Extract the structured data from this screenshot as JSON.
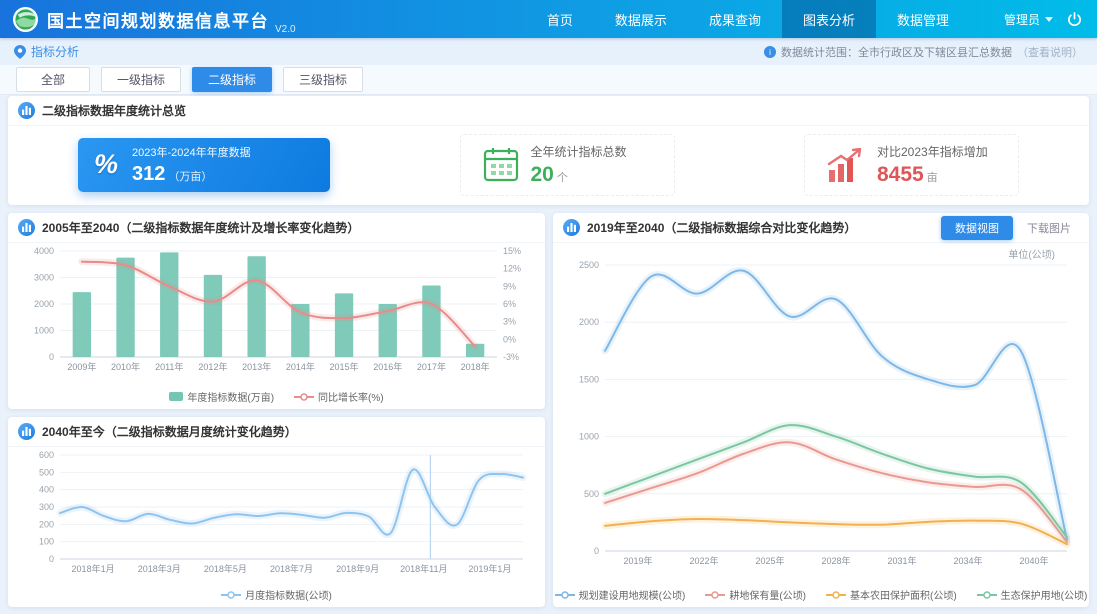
{
  "colors": {
    "header_gradient_start": "#1873dc",
    "header_gradient_end": "#00bce8",
    "accent_blue": "#2f8be8",
    "stat_blue": "#0d7ae0",
    "stat_green": "#3db05a",
    "stat_red": "#e05555",
    "bar_teal": "#74c6b3",
    "line_red": "#e98b8b",
    "line_blue": "#8fc4ee"
  },
  "header": {
    "title": "国土空间规划数据信息平台",
    "subtitle": "V2.0",
    "nav": [
      {
        "label": "首页"
      },
      {
        "label": "数据展示"
      },
      {
        "label": "成果查询"
      },
      {
        "label": "图表分析"
      },
      {
        "label": "数据管理"
      }
    ],
    "active_nav": "图表分析",
    "user_name": "管理员"
  },
  "breadcrumb": {
    "label": "指标分析"
  },
  "topnote": {
    "text": "数据统计范围：全市行政区及下辖区县汇总数据",
    "link": "（查看说明）"
  },
  "tabs": [
    {
      "label": "全部"
    },
    {
      "label": "一级指标"
    },
    {
      "label": "二级指标"
    },
    {
      "label": "三级指标"
    }
  ],
  "active_tab": "二级指标",
  "overview": {
    "title": "二级指标数据年度统计总览",
    "stat1": {
      "icon": "percent-icon",
      "title": "2023年-2024年年度数据",
      "value": "312",
      "unit": "（万亩）"
    },
    "stat2": {
      "icon": "calendar-grid-icon",
      "title": "全年统计指标总数",
      "value": "20",
      "unit": "个"
    },
    "stat3": {
      "icon": "trend-up-icon",
      "title": "对比2023年指标增加",
      "value": "8455",
      "unit": "亩"
    }
  },
  "panels": {
    "right": {
      "btn_view": "数据视图",
      "btn_download": "下载图片",
      "unit_label": "单位(公顷)"
    }
  },
  "chart_data": [
    {
      "id": "annual-bar-line",
      "type": "bar",
      "title": "2005年至2040（二级指标数据年度统计及增长率变化趋势）",
      "categories": [
        "2009年",
        "2010年",
        "2011年",
        "2012年",
        "2013年",
        "2014年",
        "2015年",
        "2016年",
        "2017年",
        "2018年"
      ],
      "left_axis": {
        "min": 0,
        "max": 4000,
        "ticks": [
          4000,
          3000,
          2000,
          1000,
          0
        ]
      },
      "right_axis": {
        "min": -3,
        "max": 15,
        "ticks": [
          15,
          12,
          9,
          6,
          3,
          0,
          -3
        ],
        "suffix": "%"
      },
      "series": [
        {
          "name": "年度指标数据(万亩)",
          "type": "bar",
          "axis": "left",
          "color": "#74c6b3",
          "values": [
            2450,
            3750,
            3950,
            3100,
            3800,
            2000,
            2400,
            2000,
            2700,
            500
          ]
        },
        {
          "name": "同比增长率(%)",
          "type": "line",
          "axis": "right",
          "color": "#e98b8b",
          "values": [
            13.2,
            12.6,
            9.0,
            6.4,
            10.0,
            4.6,
            3.6,
            4.8,
            6.0,
            -1.2
          ]
        }
      ],
      "legend_position": "bottom",
      "grid": true
    },
    {
      "id": "monthly-line",
      "type": "line",
      "title": "2040年至今（二级指标数据月度统计变化趋势）",
      "categories": [
        "2018年1月",
        "2018年3月",
        "2018年5月",
        "2018年7月",
        "2018年9月",
        "2018年11月",
        "2019年1月"
      ],
      "left_axis": {
        "min": 0,
        "max": 600,
        "ticks": [
          600,
          500,
          400,
          300,
          200,
          100,
          0
        ]
      },
      "series": [
        {
          "name": "月度指标数据(公顷)",
          "type": "line",
          "axis": "left",
          "color": "#8fc4ee",
          "values": [
            265,
            300,
            248,
            218,
            260,
            226,
            205,
            238,
            258,
            248,
            264,
            254,
            238,
            266,
            246,
            150,
            515,
            300,
            198,
            455,
            490,
            470
          ]
        }
      ],
      "marker_x_fraction": 0.8,
      "legend_position": "bottom",
      "grid": true
    },
    {
      "id": "compare-lines",
      "type": "line",
      "title": "2019年至2040（二级指标数据综合对比变化趋势）",
      "categories": [
        "2019年",
        "2022年",
        "2025年",
        "2028年",
        "2031年",
        "2034年",
        "2040年"
      ],
      "left_axis": {
        "min": 0,
        "max": 2500,
        "ticks": [
          2500,
          2000,
          1500,
          1000,
          500,
          0
        ]
      },
      "series": [
        {
          "name": "规划建设用地规模(公顷)",
          "type": "line",
          "axis": "left",
          "color": "#7db8e8",
          "values": [
            1750,
            2400,
            2250,
            2450,
            2050,
            2200,
            1700,
            1500,
            1450,
            1750,
            100
          ]
        },
        {
          "name": "耕地保有量(公顷)",
          "type": "line",
          "axis": "left",
          "color": "#e89a90",
          "values": [
            420,
            550,
            680,
            850,
            950,
            800,
            680,
            600,
            560,
            540,
            80
          ]
        },
        {
          "name": "基本农田保护面积(公顷)",
          "type": "line",
          "axis": "left",
          "color": "#f2b04e",
          "values": [
            220,
            260,
            280,
            270,
            250,
            235,
            230,
            255,
            265,
            240,
            60
          ]
        },
        {
          "name": "生态保护用地(公顷)",
          "type": "line",
          "axis": "left",
          "color": "#7cc6a2",
          "values": [
            500,
            650,
            800,
            950,
            1100,
            1000,
            850,
            720,
            650,
            600,
            120
          ]
        }
      ],
      "ylabel": "单位(公顷)",
      "legend_position": "bottom",
      "grid": true
    }
  ]
}
